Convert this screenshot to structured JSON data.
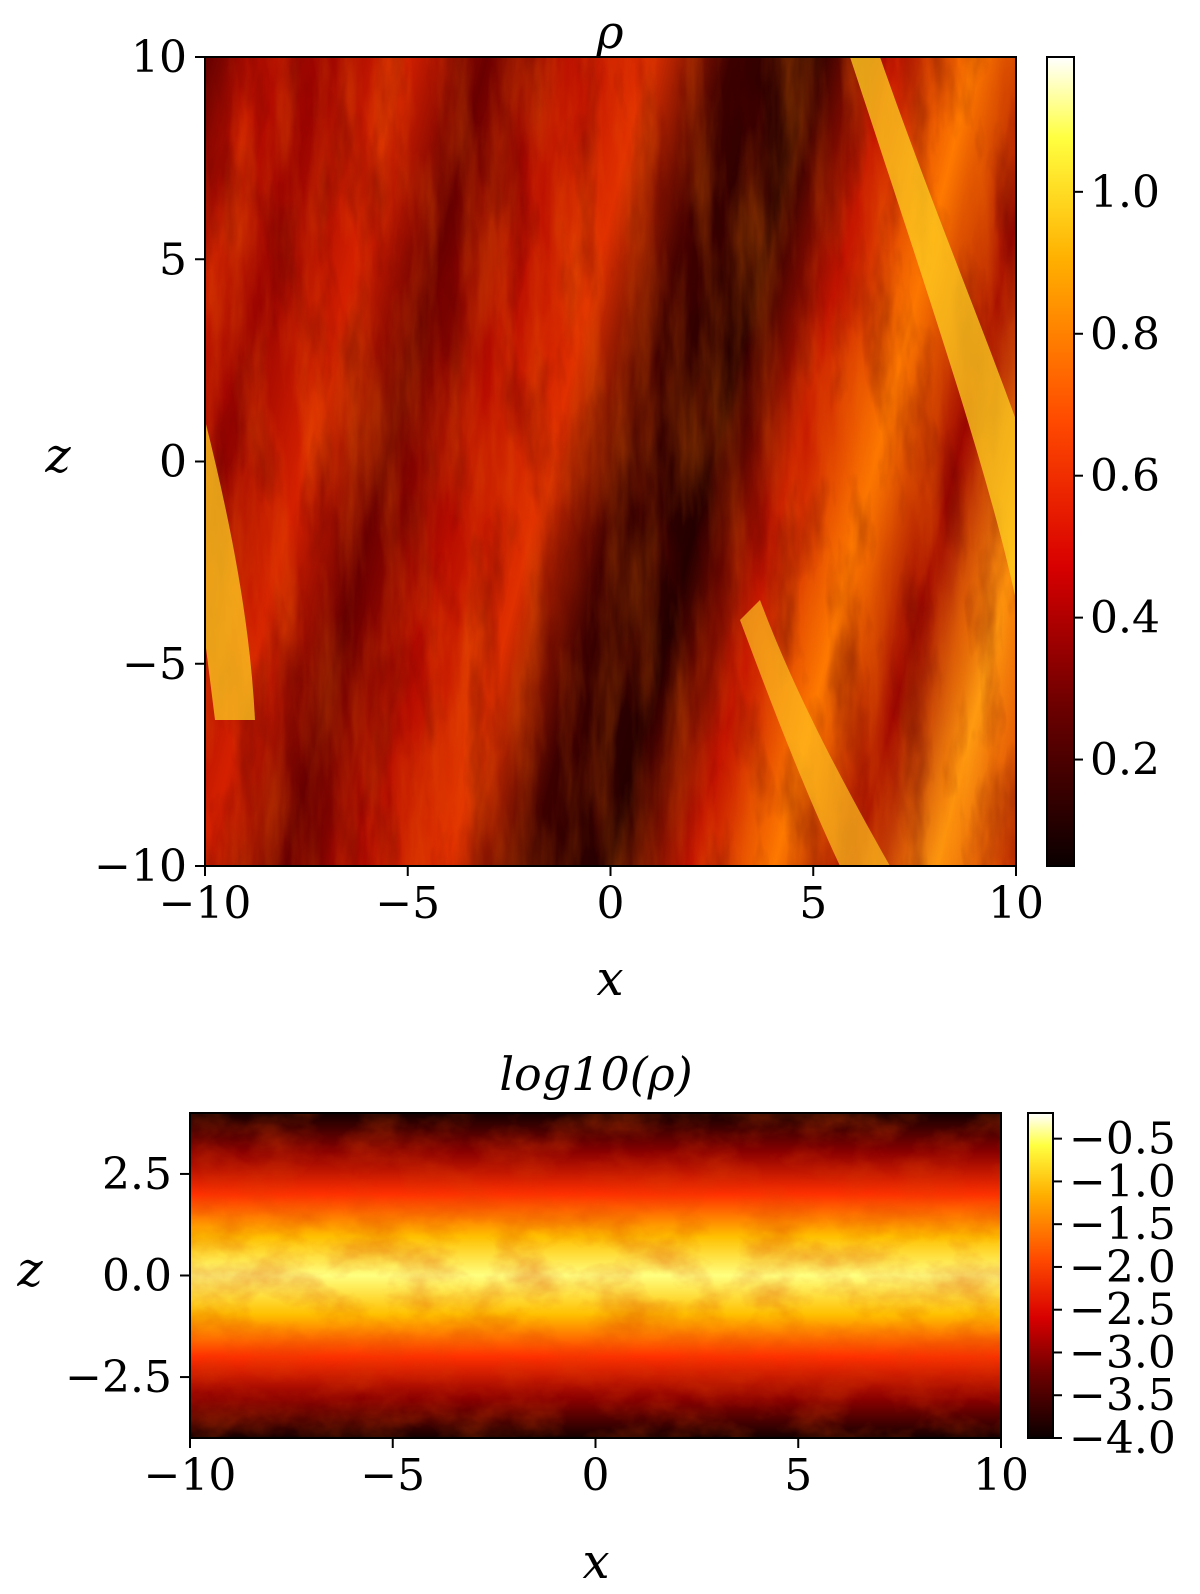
{
  "chart_data": [
    {
      "type": "heatmap",
      "title": "ρ",
      "xlabel": "x",
      "ylabel": "z",
      "xlim": [
        -10,
        10
      ],
      "ylim": [
        -10,
        10
      ],
      "xticks": [
        "−10",
        "−5",
        "0",
        "5",
        "10"
      ],
      "yticks": [
        "−10",
        "−5",
        "0",
        "5",
        "10"
      ],
      "xtick_values": [
        -10,
        -5,
        0,
        5,
        10
      ],
      "ytick_values": [
        -10,
        -5,
        0,
        5,
        10
      ],
      "colormap": "hot",
      "colorbar": {
        "range": [
          0.05,
          1.19
        ],
        "ticks": [
          "0.2",
          "0.4",
          "0.6",
          "0.8",
          "1.0"
        ],
        "tick_values": [
          0.2,
          0.4,
          0.6,
          0.8,
          1.0
        ]
      },
      "features": "diagonal density filaments tilted toward lower right; brightest filaments near x≈8-10 (upper) and x≈4-6 (lower), dark lanes near x≈0-3"
    },
    {
      "type": "heatmap",
      "title": "log10(ρ)",
      "xlabel": "x",
      "ylabel": "z",
      "xlim": [
        -10,
        10
      ],
      "ylim": [
        -4,
        4
      ],
      "xticks": [
        "−10",
        "−5",
        "0",
        "5",
        "10"
      ],
      "yticks": [
        "−2.5",
        "0.0",
        "2.5"
      ],
      "xtick_values": [
        -10,
        -5,
        0,
        5,
        10
      ],
      "ytick_values": [
        -2.5,
        0.0,
        2.5
      ],
      "colormap": "hot",
      "colorbar": {
        "range": [
          -4.0,
          -0.2
        ],
        "ticks": [
          "−0.5",
          "−1.0",
          "−1.5",
          "−2.0",
          "−2.5",
          "−3.0",
          "−3.5",
          "−4.0"
        ],
        "tick_values": [
          -0.5,
          -1.0,
          -1.5,
          -2.0,
          -2.5,
          -3.0,
          -3.5,
          -4.0
        ]
      },
      "features": "bright dense midplane layer around z=0 falling off to dark at |z|>3"
    }
  ]
}
